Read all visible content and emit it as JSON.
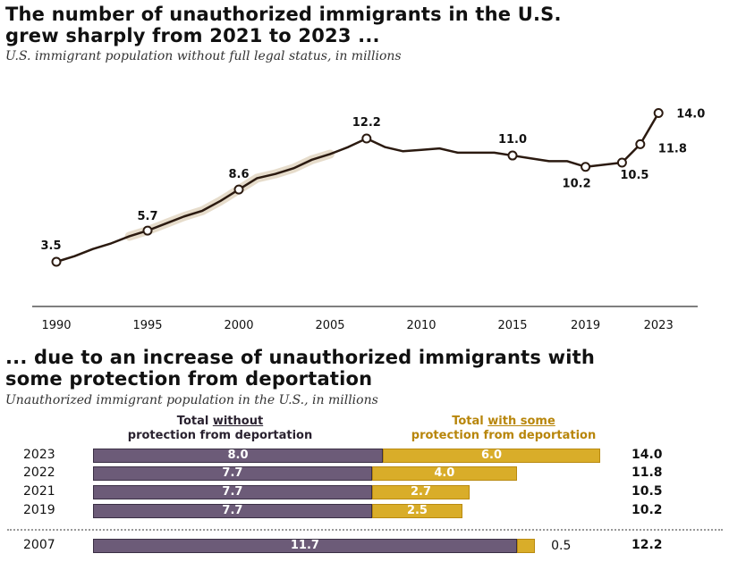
{
  "top": {
    "title_line1": "The number of unauthorized immigrants in the U.S.",
    "title_line2": "grew sharply from 2021 to 2023 ...",
    "subtitle": "U.S. immigrant population without full legal status, in millions"
  },
  "bottom": {
    "title_line1": "... due to an increase of unauthorized immigrants with",
    "title_line2": "some protection from deportation",
    "subtitle": "Unauthorized immigrant population in the U.S., in millions",
    "header_without_a": "Total ",
    "header_without_b": "without",
    "header_without_c": "protection from deportation",
    "header_with_a": "Total ",
    "header_with_b": "with some",
    "header_with_c": "protection from deportation"
  },
  "colors": {
    "line": "#2b1a10",
    "band": "#e6dccb",
    "without": "#6c5b78",
    "with": "#d9ad29",
    "with_text": "#b8860b"
  },
  "chart_data": [
    {
      "type": "line",
      "title": "The number of unauthorized immigrants in the U.S. grew sharply from 2021 to 2023 ...",
      "ylabel": "millions",
      "x_ticks": [
        "1990",
        "1995",
        "2000",
        "2005",
        "2010",
        "2015",
        "2019",
        "2023"
      ],
      "x": [
        1990,
        1991,
        1992,
        1993,
        1994,
        1995,
        1996,
        1997,
        1998,
        1999,
        2000,
        2001,
        2002,
        2003,
        2004,
        2005,
        2006,
        2007,
        2008,
        2009,
        2010,
        2011,
        2012,
        2013,
        2014,
        2015,
        2016,
        2017,
        2018,
        2019,
        2021,
        2022,
        2023
      ],
      "values": [
        3.5,
        3.9,
        4.4,
        4.8,
        5.3,
        5.7,
        6.2,
        6.7,
        7.1,
        7.8,
        8.6,
        9.4,
        9.7,
        10.1,
        10.7,
        11.1,
        11.6,
        12.2,
        11.6,
        11.3,
        11.4,
        11.5,
        11.2,
        11.2,
        11.2,
        11.0,
        10.8,
        10.6,
        10.6,
        10.2,
        10.5,
        11.8,
        14.0
      ],
      "labeled_points": [
        {
          "year": 1990,
          "value": "3.5"
        },
        {
          "year": 1995,
          "value": "5.7"
        },
        {
          "year": 2000,
          "value": "8.6"
        },
        {
          "year": 2007,
          "value": "12.2"
        },
        {
          "year": 2015,
          "value": "11.0"
        },
        {
          "year": 2019,
          "value": "10.2"
        },
        {
          "year": 2021,
          "value": "10.5"
        },
        {
          "year": 2022,
          "value": "11.8"
        },
        {
          "year": 2023,
          "value": "14.0"
        }
      ]
    },
    {
      "type": "bar",
      "stacked": true,
      "orientation": "horizontal",
      "categories": [
        "2023",
        "2022",
        "2021",
        "2019",
        "2007"
      ],
      "series": [
        {
          "name": "Total without protection from deportation",
          "values": [
            8.0,
            7.7,
            7.7,
            7.7,
            11.7
          ],
          "labels": [
            "8.0",
            "7.7",
            "7.7",
            "7.7",
            "11.7"
          ]
        },
        {
          "name": "Total with some protection from deportation",
          "values": [
            6.0,
            4.0,
            2.7,
            2.5,
            0.5
          ],
          "labels": [
            "6.0",
            "4.0",
            "2.7",
            "2.5",
            "0.5"
          ]
        }
      ],
      "totals": [
        "14.0",
        "11.8",
        "10.5",
        "10.2",
        "12.2"
      ]
    }
  ]
}
